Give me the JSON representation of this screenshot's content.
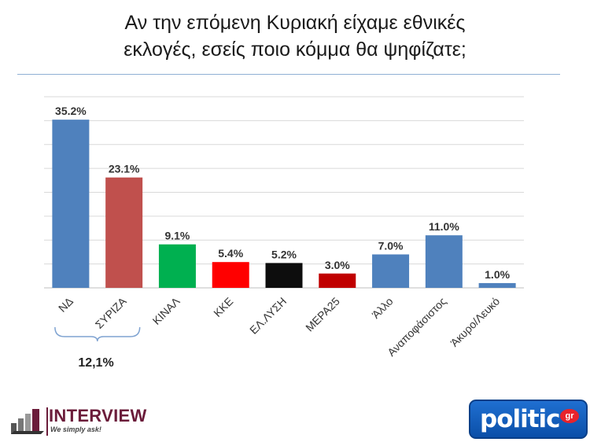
{
  "title_lines": [
    "Αν την επόμενη Κυριακή είχαμε εθνικές",
    "εκλογές, εσείς ποιο κόμμα θα ψηφίζατε;"
  ],
  "gap_note": "12,1%",
  "logos": {
    "interview_name": "INTERVIEW",
    "interview_tagline": "We simply ask!",
    "politic_word": "politic",
    "politic_badge": "gr"
  },
  "colors": {
    "blue": "#4f81bd",
    "red": "#c0504d",
    "green": "#00b050",
    "bright_red": "#ff0000",
    "black": "#0d0d0d",
    "dark_red": "#c00000",
    "grid": "#d9d9d9",
    "accent": "#6b1c3a"
  },
  "chart_data": {
    "type": "bar",
    "categories": [
      "ΝΔ",
      "ΣΥΡΙΖΑ",
      "ΚΙΝΑΛ",
      "ΚΚΕ",
      "ΕΛ.ΛΥΣΗ",
      "ΜΕΡΑ25",
      "Άλλο",
      "Αναποφάσιστος",
      "Άκυρο/Λευκό"
    ],
    "values": [
      35.2,
      23.1,
      9.1,
      5.4,
      5.2,
      3.0,
      7.0,
      11.0,
      1.0
    ],
    "value_labels": [
      "35.2%",
      "23.1%",
      "9.1%",
      "5.4%",
      "5.2%",
      "3.0%",
      "7.0%",
      "11.0%",
      "1.0%"
    ],
    "bar_colors": [
      "#4f81bd",
      "#c0504d",
      "#00b050",
      "#ff0000",
      "#0d0d0d",
      "#c00000",
      "#4f81bd",
      "#4f81bd",
      "#4f81bd"
    ],
    "title": "",
    "xlabel": "",
    "ylabel": "",
    "ylim": [
      0,
      40
    ],
    "grid": true,
    "legend": "none",
    "annotation": {
      "text": "12,1%",
      "spans_categories": [
        "ΝΔ",
        "ΣΥΡΙΖΑ"
      ]
    }
  }
}
